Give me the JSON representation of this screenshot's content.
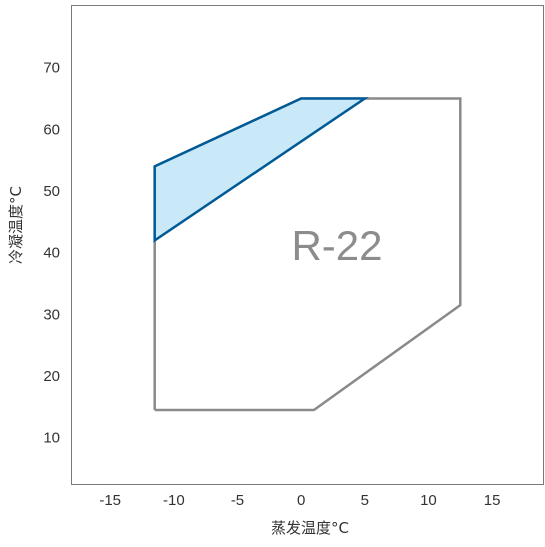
{
  "chart_data": {
    "type": "area",
    "title": "",
    "xlabel": "蒸发温度°C",
    "ylabel": "冷凝温度°C",
    "xlim": [
      -18,
      19
    ],
    "ylim": [
      2.5,
      80
    ],
    "x_ticks": [
      -15,
      -10,
      -5,
      0,
      5,
      10,
      15
    ],
    "y_ticks": [
      10,
      20,
      30,
      40,
      50,
      60,
      70
    ],
    "grid": false,
    "legend": "none",
    "annotation": "R-22",
    "series": [
      {
        "kind": "envelope-outline",
        "color": "#8a8a8a",
        "points": [
          {
            "x": -11.5,
            "y": 14.5
          },
          {
            "x": 1,
            "y": 14.5
          },
          {
            "x": 12.5,
            "y": 31.5
          },
          {
            "x": 12.5,
            "y": 65
          },
          {
            "x": 0,
            "y": 65
          },
          {
            "x": -11.5,
            "y": 54
          },
          {
            "x": -11.5,
            "y": 14.5
          }
        ]
      },
      {
        "kind": "highlighted-area",
        "color": "#005a96",
        "fill": "#c9e8f8",
        "points": [
          {
            "x": -11.5,
            "y": 54
          },
          {
            "x": 0,
            "y": 65
          },
          {
            "x": 5,
            "y": 65
          },
          {
            "x": -11.5,
            "y": 42
          }
        ]
      }
    ]
  }
}
